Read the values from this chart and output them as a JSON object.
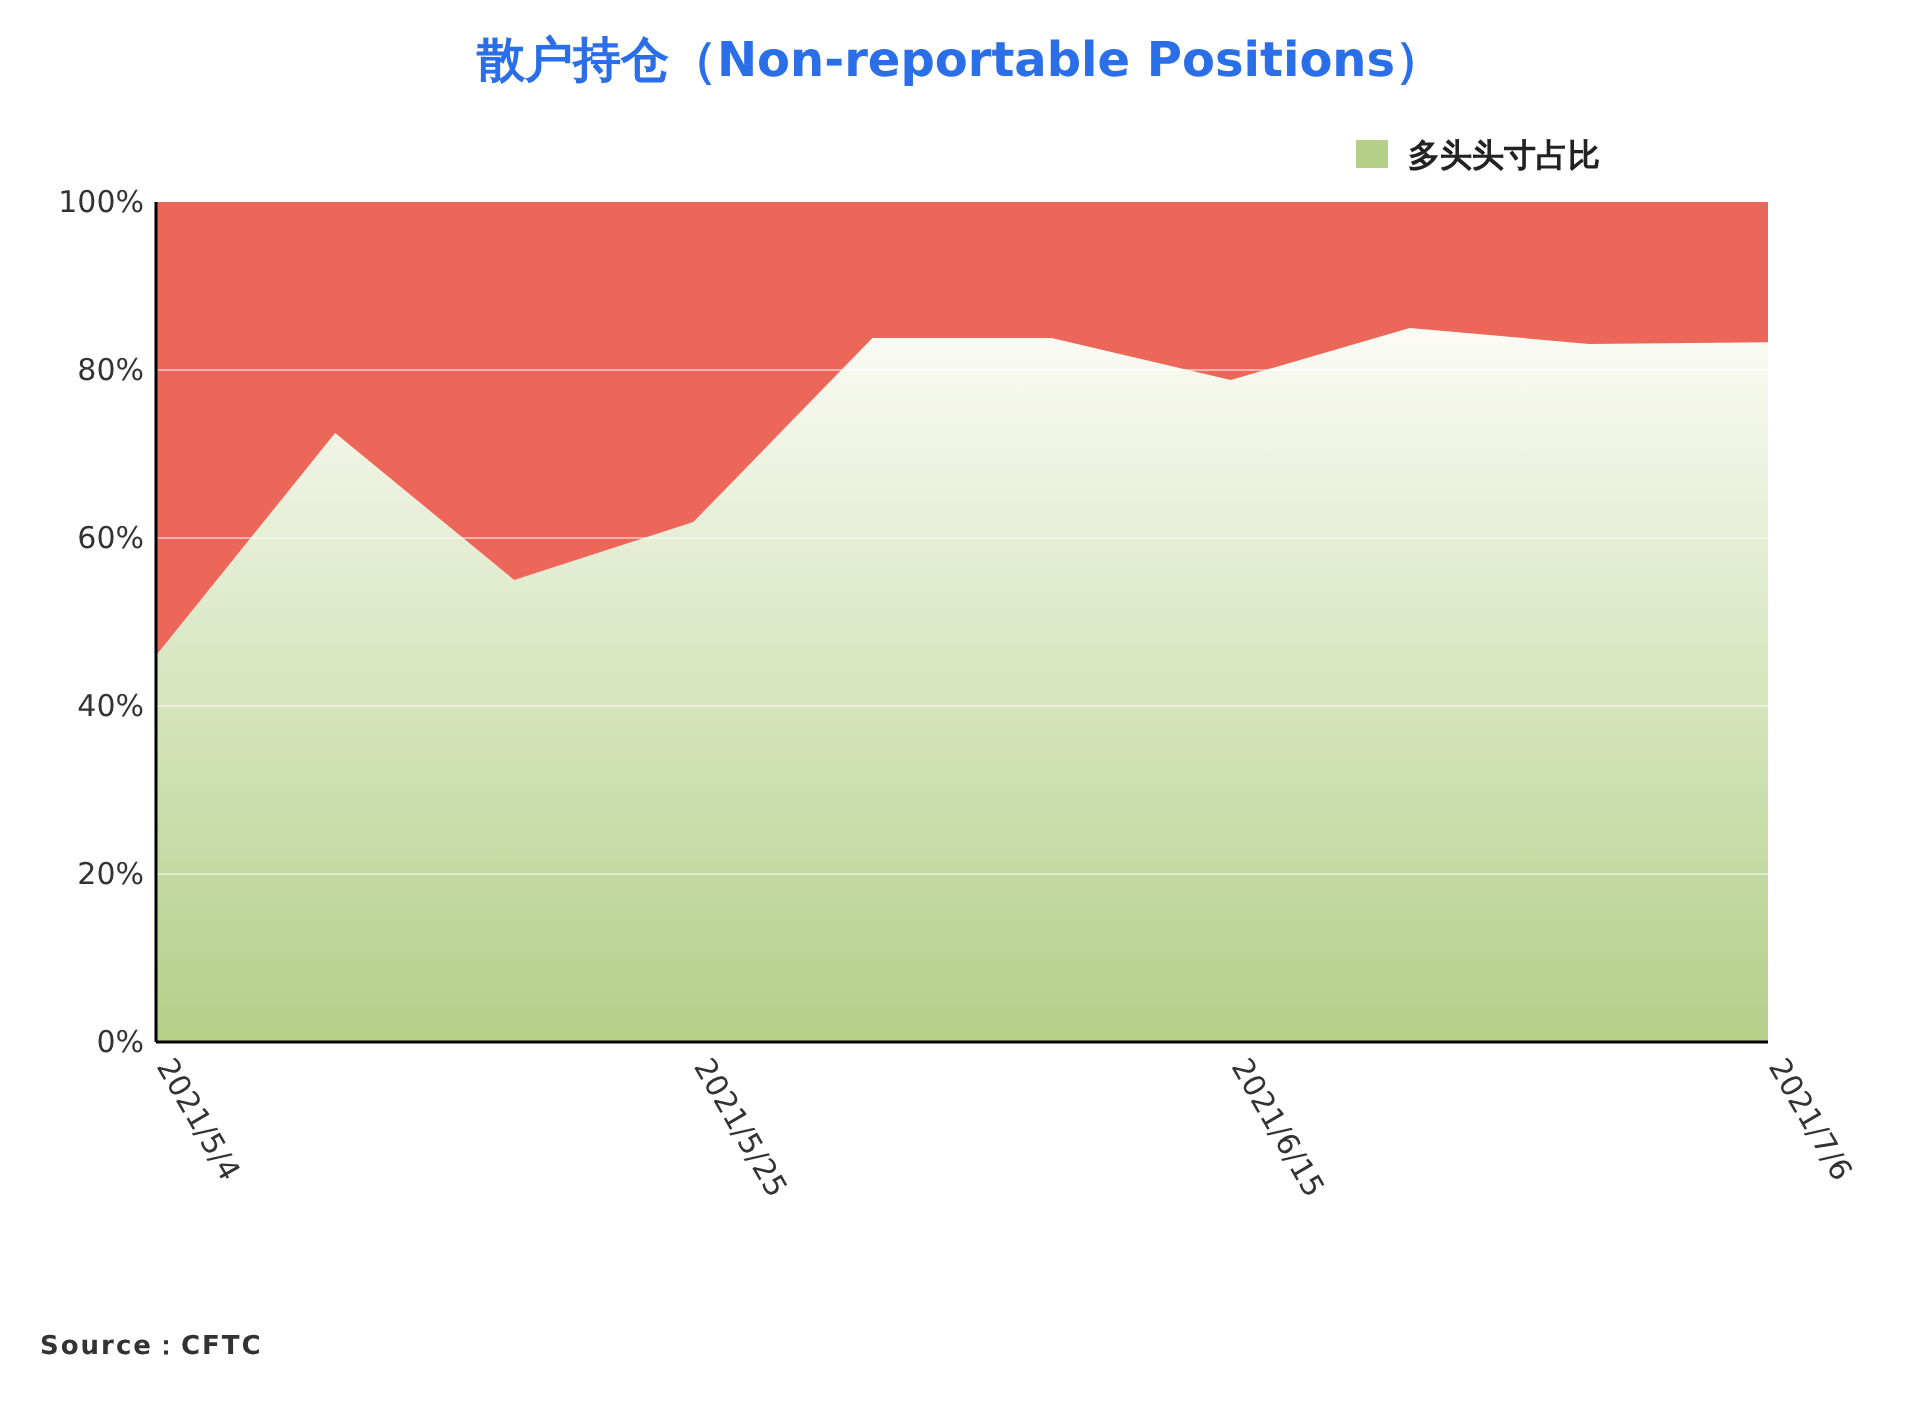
{
  "chart_data": {
    "type": "area",
    "title": "散户持仓（Non-reportable Positions）",
    "stacked": true,
    "categories": [
      "2021/5/4",
      null,
      null,
      "2021/5/25",
      null,
      null,
      "2021/6/15",
      null,
      null,
      "2021/7/6"
    ],
    "series": [
      {
        "name": "多头头寸占比",
        "color": "#b3cf88",
        "values": [
          46,
          72.5,
          55,
          61.9,
          83.8,
          83.8,
          78.8,
          85,
          83.1,
          83.3
        ]
      },
      {
        "color": "#ec6659",
        "values": [
          54,
          27.5,
          45,
          38.1,
          16.2,
          16.2,
          21.2,
          15,
          16.9,
          16.7
        ]
      }
    ],
    "ylim": [
      0,
      100
    ],
    "yticks": [
      {
        "value": 0,
        "label": "0%"
      },
      {
        "value": 20,
        "label": "20%"
      },
      {
        "value": 40,
        "label": "40%"
      },
      {
        "value": 60,
        "label": "60%"
      },
      {
        "value": 80,
        "label": "80%"
      },
      {
        "value": 100,
        "label": "100%"
      }
    ],
    "grid": "y",
    "legend": "top right",
    "annotations": [
      "Source：CFTC"
    ]
  }
}
